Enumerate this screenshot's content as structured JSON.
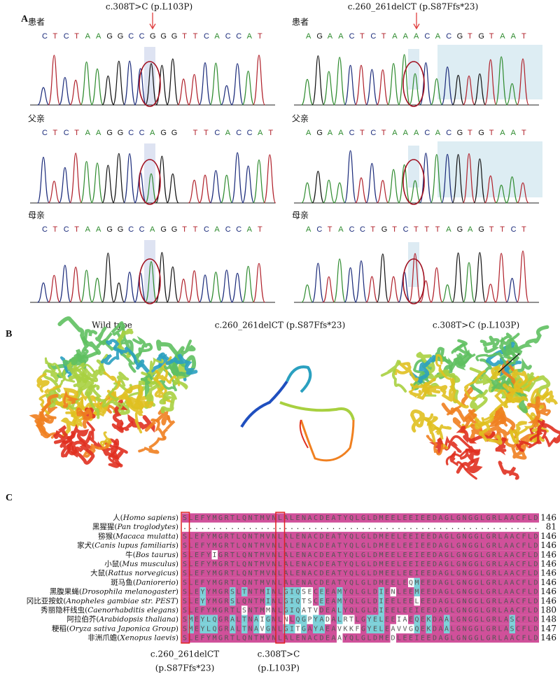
{
  "panel_a": {
    "label": "A",
    "columns": [
      {
        "mutation": "c.308T>C (p.L103P)",
        "rows": [
          {
            "person": "患者",
            "sequence": "CTCTAAGGCCGGGTTCACCAT"
          },
          {
            "person": "父亲",
            "sequence": "CTCTAAGGCCAGG TTCACCAT"
          },
          {
            "person": "母亲",
            "sequence": "CTCTAAGGCCAGGTTCACCAT"
          }
        ]
      },
      {
        "mutation": "c.260_261delCT (p.S87Ffs*23)",
        "rows": [
          {
            "person": "患者",
            "sequence": "AGAACTCTAAACACGTGTAAT"
          },
          {
            "person": "父亲",
            "sequence": "AGAACTCTAAACACGTGTAAT"
          },
          {
            "person": "母亲",
            "sequence": "ACTACCTGTCTTTAGAGTTCT"
          }
        ]
      }
    ]
  },
  "panel_b": {
    "label": "B",
    "structures": [
      "Wild type",
      "c.260_261delCT (p.S87Ffs*23)",
      "c.308T>C (p.L103P)"
    ]
  },
  "panel_c": {
    "label": "C",
    "rows": [
      {
        "name": "人",
        "latin": "Homo sapiens",
        "sequence": "SLEFYMGRTLQNTMVNLALENACDEATYQLGLDMEELEEIEEDAGLGNGGLGRLAACFLD",
        "end": 146
      },
      {
        "name": "黑猩猩",
        "latin": "Pan troglodytes",
        "sequence": "............................................................",
        "end": 81
      },
      {
        "name": "猕猴",
        "latin": "Macaca mulatta",
        "sequence": "SLEFYMGRTLQNTMVNLALENACDEATYQLGLDMEELEEIEEDAGLGNGGLGRLAACFLD",
        "end": 146
      },
      {
        "name": "家犬",
        "latin": "Canis lupus familiaris",
        "sequence": "SLEFYMGRTLQNTMVNLALENACDEATYQLGLDMEELEEIEEDAGLGNGGLGRLAACFLD",
        "end": 146
      },
      {
        "name": "牛",
        "latin": "Bos taurus",
        "sequence": "SLEFYIGRTLQNTMVNLALENACDEATYQLGLDMEELEEIEEDAGLGNGGLGRLAACFLD",
        "end": 146
      },
      {
        "name": "小鼠",
        "latin": "Mus musculus",
        "sequence": "SLEFYMGRTLQNTMVNLALENACDEATYQLGLDMEELEEIEEDAGLGNGGLGRLAACFLD",
        "end": 146
      },
      {
        "name": "大鼠",
        "latin": "Rattus norvegicus",
        "sequence": "SLEFYMGRTLQNTMVNLALENACDEATYQLGLDMEELEEIEEDAGLGNGGLGRLAACFLD",
        "end": 146
      },
      {
        "name": "斑马鱼",
        "latin": "Daniorerio",
        "sequence": "SLEFYMGRTLQNTMVNLALENACDEATYQLGLDMEELEQMEEDAGLGNGGLGRLAACFLD",
        "end": 146
      },
      {
        "name": "黑腹果蝇",
        "latin": "Drosophila melanogaster",
        "sequence": "SLEYYMGRSLTNTMINLGIQSECEEAMYQLGLDIENLEEMEEDAGLGNGGLGRLAACFLD",
        "end": 146
      },
      {
        "name": "冈比亚按蚊",
        "latin": "Anopheles gambiae str. PEST",
        "sequence": "SLEYYMGRSLQNTMINLGIQTSCEEAMYQLGLDIEELEELEEDAGLGNGGLGRLAACFLD",
        "end": 146
      },
      {
        "name": "秀丽隐杆线虫",
        "latin": "Caenorhabditis elegans",
        "sequence": "SLEFYMGRTLSNTMMNLGIQATVDEALYQLGLDIEELEEIEEDAGLGNGGLGRLAACFLD",
        "end": 180
      },
      {
        "name": "阿拉伯芥",
        "latin": "Arabidopsis thaliana",
        "sequence": "SMEYLQGRALTNAIGNLNLQGPYADALRTLGYELEEIAEQEKDAALGNGGLGRLASCFLD",
        "end": 148
      },
      {
        "name": "粳稻",
        "latin": "Oryza sativa Japonica Group",
        "sequence": "SMEYLQGRALTNAVGNLGITGAYAEAVKKFGYELEAVVGQEKDAALGNGGLGRLASCFLD",
        "end": 147
      },
      {
        "name": "非洲爪蟾",
        "latin": "Xenopus laevis",
        "sequence": "SLEFYMGRTLQNTMVNLALENACDEAAYQLGLDMEDLEEIEEDAGLGNGGLGRLAACFLD",
        "end": 146
      }
    ],
    "annotations": [
      {
        "line1": "c.260_261delCT",
        "line2": "(p.S87Ffs*23)"
      },
      {
        "line1": "c.308T>C",
        "line2": "(p.L103P)"
      }
    ]
  }
}
